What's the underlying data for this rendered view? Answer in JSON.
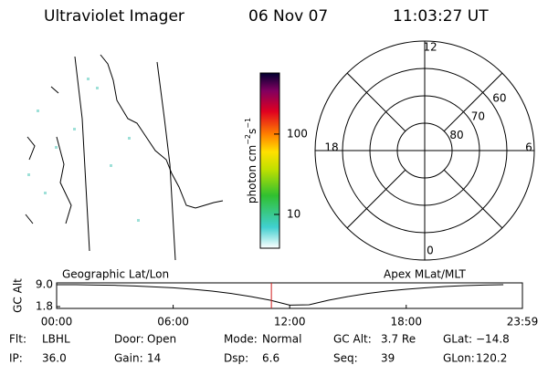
{
  "header": {
    "title": "Ultraviolet Imager",
    "date": "06 Nov 07",
    "time": "11:03:27 UT"
  },
  "colorbar": {
    "label": [
      "photon cm",
      "−2",
      "s",
      "−1"
    ],
    "log": true,
    "lim": [
      3.8,
      575
    ],
    "ticks": [
      10,
      100
    ]
  },
  "polar": {
    "lat_lim": [
      90,
      50
    ],
    "lat_ticks": [
      60,
      70,
      80
    ],
    "mlt_ticks": [
      0,
      6,
      12,
      18
    ]
  },
  "timeline": {
    "left_label": "Geographic Lat/Lon",
    "right_label": "Apex MLat/MLT",
    "ylabel": "GC Alt",
    "ylim": [
      1.2,
      9.6
    ],
    "yticks": [
      1.8,
      {
        "value": 9,
        "label": "9.0"
      }
    ],
    "xlim": [
      0,
      23.983
    ],
    "xticks": [
      {
        "value": 0,
        "label": "00:00"
      },
      {
        "value": 6,
        "label": "06:00"
      },
      {
        "value": 12,
        "label": "12:00"
      },
      {
        "value": 18,
        "label": "18:00"
      },
      {
        "value": 23.983,
        "label": "23:59"
      }
    ],
    "x": [
      0,
      1,
      2,
      3,
      4,
      5,
      6,
      7,
      8,
      9,
      10,
      11,
      12,
      13,
      14,
      15,
      16,
      17,
      18,
      19,
      20,
      21,
      22,
      23
    ],
    "values": [
      9.0,
      9.0,
      8.9,
      8.8,
      8.6,
      8.3,
      8.0,
      7.5,
      6.9,
      6.1,
      5.1,
      3.9,
      2.3,
      2.4,
      3.9,
      5.1,
      6.1,
      6.9,
      7.5,
      8.0,
      8.4,
      8.7,
      8.9,
      9.0
    ],
    "current_time": 11.0575
  },
  "status": [
    [
      {
        "label": "Flt:",
        "value": "LBHL"
      },
      {
        "label": "Door:",
        "value": "Open"
      },
      {
        "label": "Mode:",
        "value": "Normal"
      },
      {
        "label": "GC Alt:",
        "value": "3.7 Re"
      },
      {
        "label": "GLat:",
        "value": "−14.8"
      }
    ],
    [
      {
        "label": "IP:",
        "value": "36.0"
      },
      {
        "label": "Gain:",
        "value": "14"
      },
      {
        "label": "Dsp:",
        "value": "6.6"
      },
      {
        "label": "Seq:",
        "value": "39"
      },
      {
        "label": "GLon:",
        "value": "120.2"
      }
    ]
  ]
}
